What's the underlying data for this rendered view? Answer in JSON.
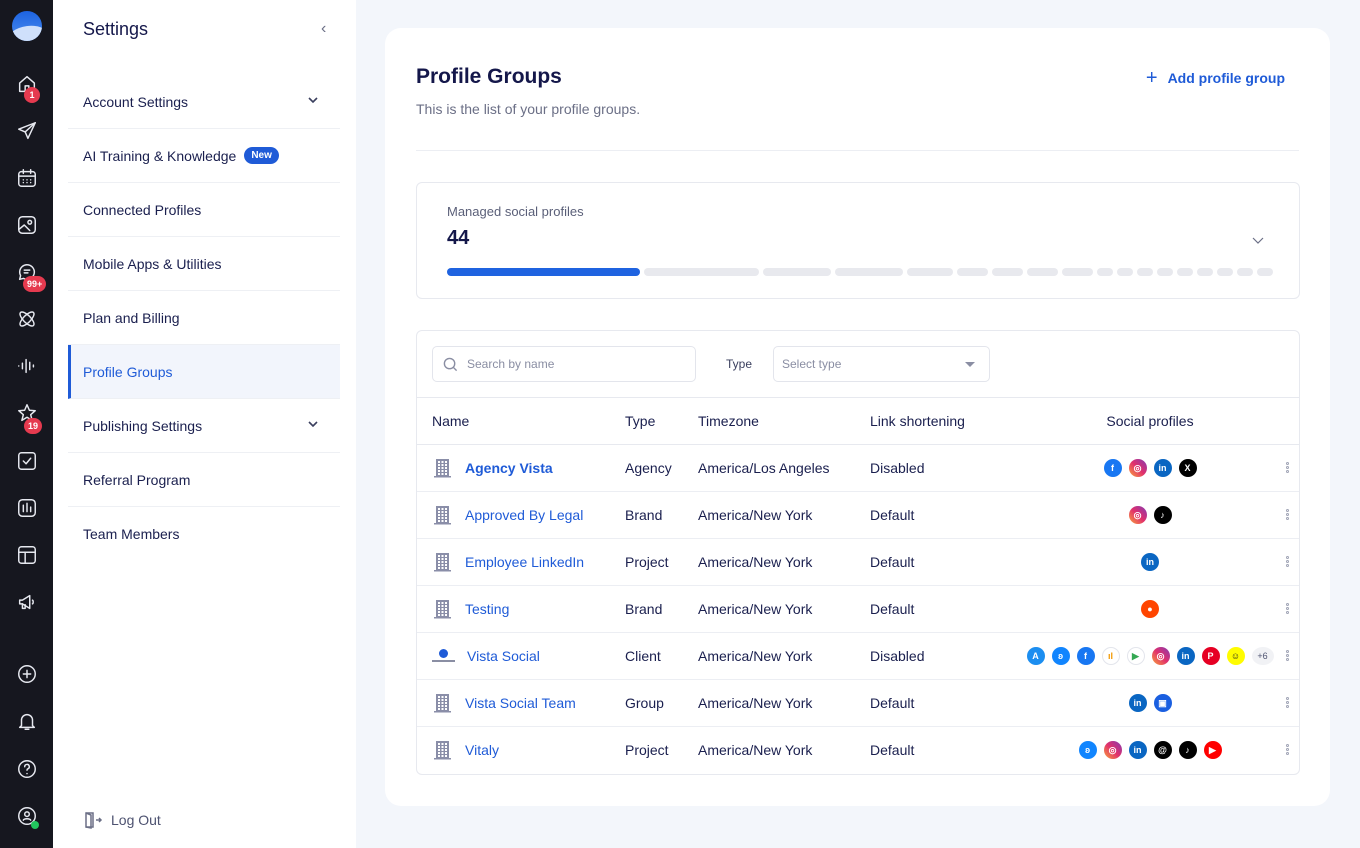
{
  "rail": {
    "badges": {
      "home": "1",
      "inbox": "99+",
      "reviews": "19"
    }
  },
  "sidebar": {
    "title": "Settings",
    "items": [
      {
        "label": "Account Settings",
        "expandable": true
      },
      {
        "label": "AI Training & Knowledge",
        "badge": "New"
      },
      {
        "label": "Connected Profiles"
      },
      {
        "label": "Mobile Apps & Utilities"
      },
      {
        "label": "Plan and Billing"
      },
      {
        "label": "Profile Groups",
        "active": true
      },
      {
        "label": "Publishing Settings",
        "expandable": true
      },
      {
        "label": "Referral Program"
      },
      {
        "label": "Team Members"
      }
    ],
    "logout": "Log Out"
  },
  "page": {
    "title": "Profile Groups",
    "subtitle": "This is the list of your profile groups.",
    "add_button": "Add profile group"
  },
  "managed": {
    "label": "Managed social profiles",
    "count": "44",
    "segments": [
      193,
      115,
      68,
      68,
      46,
      31,
      31,
      31,
      31,
      16,
      16,
      16,
      16,
      16,
      16,
      16,
      16,
      16
    ],
    "filled_segments": 1
  },
  "filters": {
    "search_placeholder": "Search by name",
    "type_label": "Type",
    "type_placeholder": "Select type"
  },
  "table": {
    "headers": {
      "name": "Name",
      "type": "Type",
      "timezone": "Timezone",
      "link": "Link shortening",
      "social": "Social profiles"
    },
    "rows": [
      {
        "name": "Agency Vista",
        "type": "Agency",
        "timezone": "America/Los Angeles",
        "link": "Disabled",
        "icon": "building",
        "bold": true,
        "socials": [
          "facebook",
          "instagram",
          "linkedin",
          "x"
        ]
      },
      {
        "name": "Approved By Legal",
        "type": "Brand",
        "timezone": "America/New York",
        "link": "Default",
        "icon": "building",
        "socials": [
          "instagram",
          "tiktok"
        ]
      },
      {
        "name": "Employee LinkedIn",
        "type": "Project",
        "timezone": "America/New York",
        "link": "Default",
        "icon": "building",
        "socials": [
          "linkedin"
        ]
      },
      {
        "name": "Testing",
        "type": "Brand",
        "timezone": "America/New York",
        "link": "Default",
        "icon": "building",
        "socials": [
          "reddit"
        ]
      },
      {
        "name": "Vista Social",
        "type": "Client",
        "timezone": "America/New York",
        "link": "Disabled",
        "icon": "vista-logo",
        "socials": [
          "appstore",
          "bluesky",
          "facebook",
          "analytics",
          "googleplay",
          "instagram",
          "linkedin",
          "pinterest",
          "snapchat"
        ],
        "more": "+6"
      },
      {
        "name": "Vista Social Team",
        "type": "Group",
        "timezone": "America/New York",
        "link": "Default",
        "icon": "building",
        "socials": [
          "linkedin",
          "gbp"
        ]
      },
      {
        "name": "Vitaly",
        "type": "Project",
        "timezone": "America/New York",
        "link": "Default",
        "icon": "building",
        "socials": [
          "bluesky",
          "instagram",
          "linkedin",
          "threads",
          "tiktok",
          "youtube"
        ]
      }
    ]
  },
  "colors": {
    "accent": "#1f5bd7",
    "rail_bg": "#16171f",
    "page_bg": "#f3f6fb",
    "badge_red": "#e53a4f",
    "text_dark": "#14174a"
  },
  "social_glyphs": {
    "facebook": {
      "bg": "#1877f2",
      "fg": "#ffffff",
      "t": "f"
    },
    "instagram": {
      "bg": "linear-gradient(45deg,#f9a23b,#e1306c,#833ab4)",
      "fg": "#ffffff",
      "t": "◎"
    },
    "linkedin": {
      "bg": "#0a66c2",
      "fg": "#ffffff",
      "t": "in"
    },
    "x": {
      "bg": "#000000",
      "fg": "#ffffff",
      "t": "X"
    },
    "tiktok": {
      "bg": "#000000",
      "fg": "#ffffff",
      "t": "♪"
    },
    "reddit": {
      "bg": "#ff4500",
      "fg": "#ffffff",
      "t": "●"
    },
    "appstore": {
      "bg": "#1c8ef0",
      "fg": "#ffffff",
      "t": "A"
    },
    "bluesky": {
      "bg": "#1185fe",
      "fg": "#ffffff",
      "t": "ʚ"
    },
    "analytics": {
      "bg": "#ffffff",
      "fg": "#f29900",
      "t": "ıl"
    },
    "googleplay": {
      "bg": "#ffffff",
      "fg": "#34a853",
      "t": "▶"
    },
    "pinterest": {
      "bg": "#e60023",
      "fg": "#ffffff",
      "t": "P"
    },
    "snapchat": {
      "bg": "#fffc00",
      "fg": "#222222",
      "t": "☺"
    },
    "gbp": {
      "bg": "#1a5fe0",
      "fg": "#ffffff",
      "t": "▣"
    },
    "threads": {
      "bg": "#000000",
      "fg": "#ffffff",
      "t": "@"
    },
    "youtube": {
      "bg": "#ff0000",
      "fg": "#ffffff",
      "t": "▶"
    }
  }
}
